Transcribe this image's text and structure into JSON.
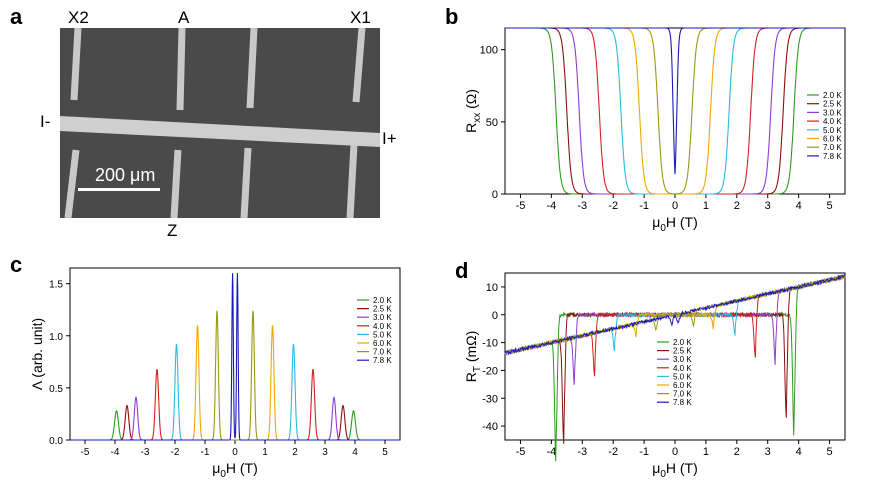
{
  "panels": {
    "a": {
      "label": "a",
      "contacts": [
        "X2",
        "A",
        "X1"
      ],
      "current_minus": "I-",
      "current_plus": "I+",
      "bottom_contact": "Z",
      "scale_bar": "200 μm"
    },
    "b": {
      "label": "b"
    },
    "c": {
      "label": "c"
    },
    "d": {
      "label": "d"
    }
  },
  "legend_labels": [
    "2.0 K",
    "2.5 K",
    "3.0 K",
    "4.0 K",
    "5.0 K",
    "6.0 K",
    "7.0 K",
    "7.8 K"
  ],
  "colors": [
    "#2f9a1f",
    "#8b1010",
    "#8e3fd0",
    "#d42020",
    "#27bce0",
    "#f0a800",
    "#9a9a10",
    "#1a1ab8"
  ],
  "chart_data": [
    {
      "id": "b",
      "type": "line",
      "xlabel": "μ0H (T)",
      "ylabel": "Rxx (Ω)",
      "xlim": [
        -5.5,
        5.5
      ],
      "ylim": [
        0,
        115
      ],
      "xticks": [
        -5,
        -4,
        -3,
        -2,
        -1,
        0,
        1,
        2,
        3,
        4,
        5
      ],
      "yticks": [
        0,
        50,
        100
      ],
      "legend_position": "right",
      "series": [
        {
          "name": "2.0 K",
          "hc2": 3.85,
          "r_normal": 115
        },
        {
          "name": "2.5 K",
          "hc2": 3.5,
          "r_normal": 115
        },
        {
          "name": "3.0 K",
          "hc2": 3.1,
          "r_normal": 115
        },
        {
          "name": "4.0 K",
          "hc2": 2.45,
          "r_normal": 115
        },
        {
          "name": "5.0 K",
          "hc2": 1.75,
          "r_normal": 115
        },
        {
          "name": "6.0 K",
          "hc2": 1.15,
          "r_normal": 115
        },
        {
          "name": "7.0 K",
          "hc2": 0.55,
          "r_normal": 115
        },
        {
          "name": "7.8 K",
          "hc2": 0.06,
          "r_normal": 115
        }
      ]
    },
    {
      "id": "c",
      "type": "line",
      "xlabel": "μ0H (T)",
      "ylabel": "Λ (arb. unit)",
      "xlim": [
        -5.5,
        5.5
      ],
      "ylim": [
        0,
        1.65
      ],
      "xticks": [
        -5,
        -4,
        -3,
        -2,
        -1,
        0,
        1,
        2,
        3,
        4,
        5
      ],
      "yticks": [
        0.0,
        0.5,
        1.0,
        1.5
      ],
      "legend_position": "right",
      "series": [
        {
          "name": "2.0 K",
          "peak_field": 3.95,
          "peak_height": 0.28
        },
        {
          "name": "2.5 K",
          "peak_field": 3.6,
          "peak_height": 0.33
        },
        {
          "name": "3.0 K",
          "peak_field": 3.3,
          "peak_height": 0.41
        },
        {
          "name": "4.0 K",
          "peak_field": 2.6,
          "peak_height": 0.68
        },
        {
          "name": "5.0 K",
          "peak_field": 1.95,
          "peak_height": 0.92
        },
        {
          "name": "6.0 K",
          "peak_field": 1.25,
          "peak_height": 1.1
        },
        {
          "name": "7.0 K",
          "peak_field": 0.6,
          "peak_height": 1.24
        },
        {
          "name": "7.8 K",
          "peak_field": 0.08,
          "peak_height": 1.6
        }
      ]
    },
    {
      "id": "d",
      "type": "line",
      "xlabel": "μ0H (T)",
      "ylabel": "RT (mΩ)",
      "xlim": [
        -5.5,
        5.5
      ],
      "ylim": [
        -45,
        15
      ],
      "xticks": [
        -5,
        -4,
        -3,
        -2,
        -1,
        0,
        1,
        2,
        3,
        4,
        5
      ],
      "yticks": [
        -40,
        -30,
        -20,
        -10,
        0,
        10
      ],
      "legend_position": "lower left",
      "background_slope_per_T": 2.5,
      "series": [
        {
          "name": "2.0 K",
          "hc2": 3.85,
          "dip": -44
        },
        {
          "name": "2.5 K",
          "hc2": 3.6,
          "dip": -37
        },
        {
          "name": "3.0 K",
          "hc2": 3.25,
          "dip": -18
        },
        {
          "name": "4.0 K",
          "hc2": 2.6,
          "dip": -15
        },
        {
          "name": "5.0 K",
          "hc2": 1.95,
          "dip": -8
        },
        {
          "name": "6.0 K",
          "hc2": 1.25,
          "dip": -5
        },
        {
          "name": "7.0 K",
          "hc2": 0.6,
          "dip": -4
        },
        {
          "name": "7.8 K",
          "hc2": 0.1,
          "dip": -3
        }
      ]
    }
  ]
}
